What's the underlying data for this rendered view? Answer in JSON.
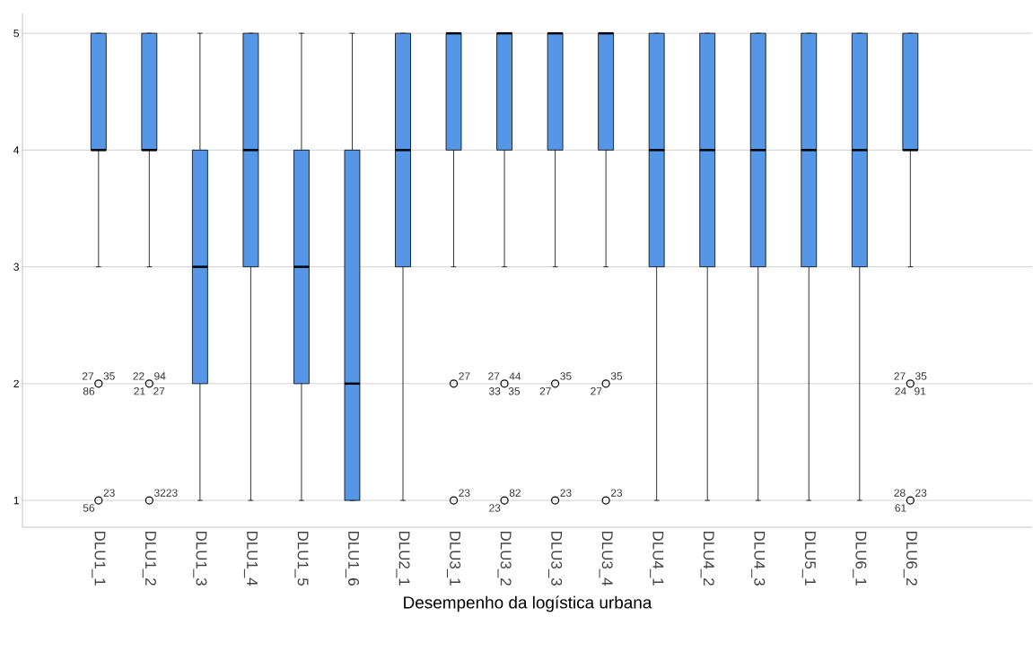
{
  "chart_data": {
    "type": "box",
    "xlabel": "Desempenho da logística urbana",
    "categories": [
      "DLU1_1",
      "DLU1_2",
      "DLU1_3",
      "DLU1_4",
      "DLU1_5",
      "DLU1_6",
      "DLU2_1",
      "DLU3_1",
      "DLU3_2",
      "DLU3_3",
      "DLU3_4",
      "DLU4_1",
      "DLU4_2",
      "DLU4_3",
      "DLU5_1",
      "DLU6_1",
      "DLU6_2"
    ],
    "color": "#5596e6",
    "boxes": [
      {
        "low": 3,
        "q1": 4,
        "median": 4,
        "q3": 5,
        "high": 5,
        "outliers": [
          2,
          1
        ]
      },
      {
        "low": 3,
        "q1": 4,
        "median": 4,
        "q3": 5,
        "high": 5,
        "outliers": [
          2,
          1
        ]
      },
      {
        "low": 1,
        "q1": 2,
        "median": 3,
        "q3": 4,
        "high": 5
      },
      {
        "low": 1,
        "q1": 3,
        "median": 4,
        "q3": 5,
        "high": 5
      },
      {
        "low": 1,
        "q1": 2,
        "median": 3,
        "q3": 4,
        "high": 5
      },
      {
        "low": 1,
        "q1": 1,
        "median": 2,
        "q3": 4,
        "high": 5
      },
      {
        "low": 1,
        "q1": 3,
        "median": 4,
        "q3": 5,
        "high": 5
      },
      {
        "low": 3,
        "q1": 4,
        "median": 5,
        "q3": 5,
        "high": 5,
        "outliers": [
          2,
          1
        ]
      },
      {
        "low": 3,
        "q1": 4,
        "median": 5,
        "q3": 5,
        "high": 5,
        "outliers": [
          2,
          1
        ]
      },
      {
        "low": 3,
        "q1": 4,
        "median": 5,
        "q3": 5,
        "high": 5,
        "outliers": [
          2,
          1
        ]
      },
      {
        "low": 3,
        "q1": 4,
        "median": 5,
        "q3": 5,
        "high": 5,
        "outliers": [
          2,
          1
        ]
      },
      {
        "low": 1,
        "q1": 3,
        "median": 4,
        "q3": 5,
        "high": 5
      },
      {
        "low": 1,
        "q1": 3,
        "median": 4,
        "q3": 5,
        "high": 5
      },
      {
        "low": 1,
        "q1": 3,
        "median": 4,
        "q3": 5,
        "high": 5
      },
      {
        "low": 1,
        "q1": 3,
        "median": 4,
        "q3": 5,
        "high": 5
      },
      {
        "low": 1,
        "q1": 3,
        "median": 4,
        "q3": 5,
        "high": 5
      },
      {
        "low": 3,
        "q1": 4,
        "median": 4,
        "q3": 5,
        "high": 5,
        "outliers": [
          2,
          1
        ]
      }
    ],
    "ylim": [
      0.77,
      5.17
    ],
    "yticks": [
      1,
      2,
      3,
      4,
      5
    ],
    "grid": "y",
    "annotations": [
      "35",
      "86",
      "27",
      "23",
      "56",
      "94",
      "21",
      "22",
      "27",
      "3223",
      "27",
      "23",
      "44",
      "33",
      "27",
      "35",
      "82",
      "23",
      "35",
      "27",
      "23",
      "35",
      "27",
      "23",
      "35",
      "24",
      "27",
      "91",
      "23",
      "61",
      "28"
    ]
  }
}
